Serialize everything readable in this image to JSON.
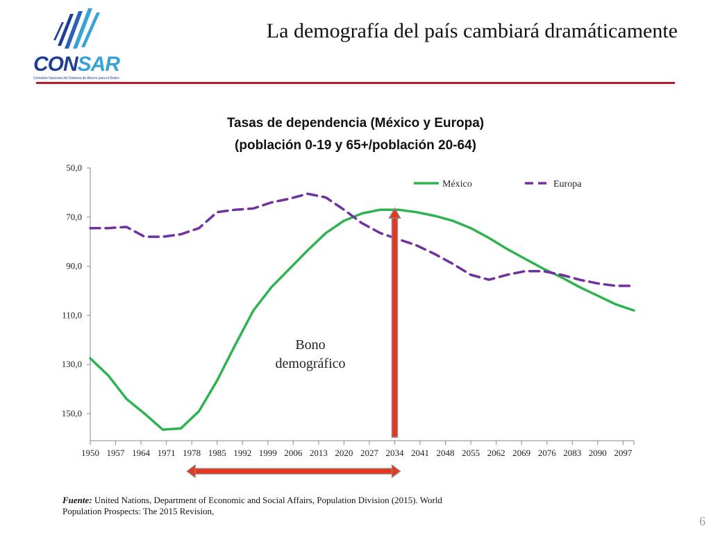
{
  "logo": {
    "word_part1": "CON",
    "word_part2": "SAR",
    "subtitle": "Comisión Nacional del Sistema de Ahorro para el Retiro"
  },
  "header": {
    "title": "La demografía del país cambiará dramáticamente"
  },
  "chart_data": {
    "type": "line",
    "title": "Tasas de dependencia (México y Europa)",
    "subtitle": "(población 0-19 y 65+/población 20-64)",
    "xlabel": "",
    "ylabel": "",
    "categories": [
      "1950",
      "1957",
      "1964",
      "1971",
      "1978",
      "1985",
      "1992",
      "1999",
      "2006",
      "2013",
      "2020",
      "2027",
      "2034",
      "2041",
      "2048",
      "2055",
      "2062",
      "2069",
      "2076",
      "2083",
      "2090",
      "2097"
    ],
    "y_tick_labels": [
      "50,0",
      "70,0",
      "90,0",
      "110,0",
      "130,0",
      "150,0"
    ],
    "y_ticks": [
      50,
      70,
      90,
      110,
      130,
      150
    ],
    "ylim": [
      50,
      161
    ],
    "y_inverted": true,
    "grid": false,
    "legend": "top-right",
    "series": [
      {
        "name": "México",
        "color": "#2eb350",
        "dash": "solid",
        "x": [
          1950,
          1955,
          1960,
          1965,
          1970,
          1975,
          1980,
          1985,
          1990,
          1995,
          2000,
          2005,
          2010,
          2015,
          2020,
          2025,
          2030,
          2035,
          2040,
          2045,
          2050,
          2055,
          2060,
          2065,
          2070,
          2075,
          2080,
          2085,
          2090,
          2095,
          2100
        ],
        "values": [
          127.5,
          134.5,
          144,
          150,
          156.5,
          156,
          149,
          136.5,
          122,
          108,
          98.5,
          91,
          83.5,
          76.5,
          71.5,
          68.5,
          67,
          67,
          68,
          69.5,
          71.5,
          74.5,
          78.5,
          83,
          87,
          91,
          94.5,
          98.5,
          102,
          105.5,
          108
        ]
      },
      {
        "name": "Europa",
        "color": "#7030a0",
        "dash": "dashed",
        "x": [
          1950,
          1955,
          1960,
          1965,
          1970,
          1975,
          1980,
          1985,
          1990,
          1995,
          2000,
          2005,
          2010,
          2015,
          2020,
          2025,
          2030,
          2035,
          2040,
          2045,
          2050,
          2055,
          2060,
          2065,
          2070,
          2075,
          2080,
          2085,
          2090,
          2095,
          2100
        ],
        "values": [
          74.5,
          74.5,
          74,
          78,
          78,
          77,
          74.5,
          68,
          67,
          66.5,
          64,
          62.5,
          60.5,
          62,
          67,
          72.5,
          76.5,
          79,
          81.5,
          85,
          89,
          93.5,
          95.5,
          93.5,
          92,
          92,
          93.5,
          95.5,
          97,
          98,
          98
        ]
      }
    ],
    "annotations": [
      {
        "text_line1": "Bono",
        "text_line2": "demográfico",
        "vertical_arrow_at_year": 2034,
        "horizontal_arrow_from_year": 1978,
        "horizontal_arrow_to_year": 2034
      }
    ]
  },
  "footnote": {
    "label": "Fuente:",
    "text": " United Nations, Department of Economic and Social Affairs, Population Division (2015). World Population Prospects: The 2015 Revision,"
  },
  "page_number": "6",
  "colors": {
    "title_rule": "#b11c2b",
    "arrow_red": "#e8351f",
    "arrow_gray": "#8c8c8c",
    "logo_dark_blue": "#1f3f97",
    "logo_light_blue": "#3aa3d6"
  }
}
